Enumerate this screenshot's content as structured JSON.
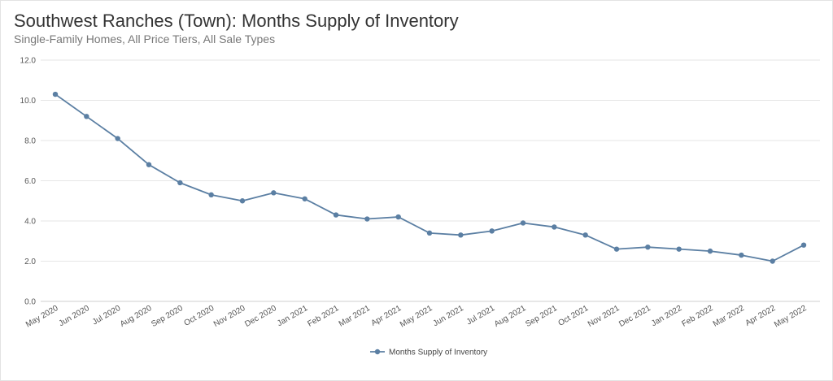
{
  "header": {
    "title": "Southwest Ranches (Town): Months Supply of Inventory",
    "subtitle": "Single-Family Homes, All Price Tiers, All Sale Types"
  },
  "chart_data": {
    "type": "line",
    "title": "Southwest Ranches (Town): Months Supply of Inventory",
    "subtitle": "Single-Family Homes, All Price Tiers, All Sale Types",
    "xlabel": "",
    "ylabel": "",
    "categories": [
      "May 2020",
      "Jun 2020",
      "Jul 2020",
      "Aug 2020",
      "Sep 2020",
      "Oct 2020",
      "Nov 2020",
      "Dec 2020",
      "Jan 2021",
      "Feb 2021",
      "Mar 2021",
      "Apr 2021",
      "May 2021",
      "Jun 2021",
      "Jul 2021",
      "Aug 2021",
      "Sep 2021",
      "Oct 2021",
      "Nov 2021",
      "Dec 2021",
      "Jan 2022",
      "Feb 2022",
      "Mar 2022",
      "Apr 2022",
      "May 2022"
    ],
    "series": [
      {
        "name": "Months Supply of Inventory",
        "color": "#5b7fa3",
        "values": [
          10.3,
          9.2,
          8.1,
          6.8,
          5.9,
          5.3,
          5.0,
          5.4,
          5.1,
          4.3,
          4.1,
          4.2,
          3.4,
          3.3,
          3.5,
          3.9,
          3.7,
          3.3,
          2.6,
          2.7,
          2.6,
          2.5,
          2.3,
          2.0,
          2.8
        ]
      }
    ],
    "ylim": [
      0,
      12
    ],
    "yticks": [
      "0.0",
      "2.0",
      "4.0",
      "6.0",
      "8.0",
      "10.0",
      "12.0"
    ],
    "grid": true,
    "legend": "bottom-center"
  }
}
